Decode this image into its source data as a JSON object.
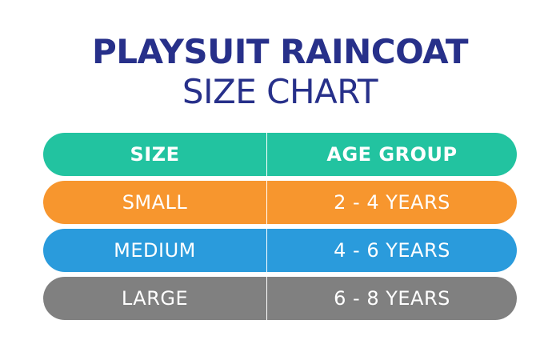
{
  "title": {
    "line1": "PLAYSUIT RAINCOAT",
    "line2": "SIZE CHART"
  },
  "table": {
    "headers": {
      "size": "SIZE",
      "age_group": "AGE GROUP"
    },
    "rows": [
      {
        "size": "SMALL",
        "age_group": "2 - 4 YEARS",
        "color": "#f7962e"
      },
      {
        "size": "MEDIUM",
        "age_group": "4 - 6 YEARS",
        "color": "#2a9bdc"
      },
      {
        "size": "LARGE",
        "age_group": "6 - 8 YEARS",
        "color": "#808080"
      }
    ],
    "header_color": "#22c3a0"
  },
  "colors": {
    "title": "#27308a",
    "background": "#ffffff"
  }
}
